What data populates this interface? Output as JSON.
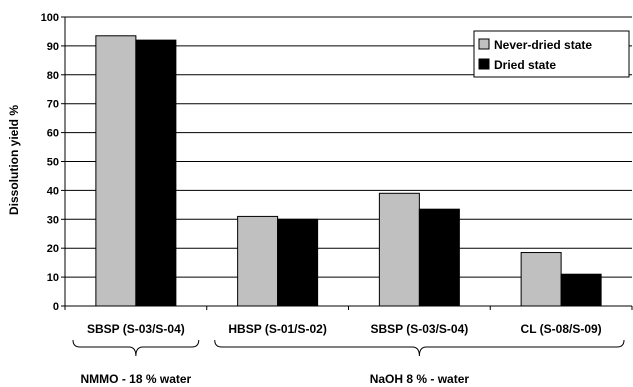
{
  "chart_data": {
    "type": "bar",
    "ylabel": "Dissolution yield %",
    "ylim": [
      0,
      100
    ],
    "yticks": [
      0,
      10,
      20,
      30,
      40,
      50,
      60,
      70,
      80,
      90,
      100
    ],
    "categories": [
      "SBSP (S-03/S-04)",
      "HBSP (S-01/S-02)",
      "SBSP (S-03/S-04)",
      "CL (S-08/S-09)"
    ],
    "series": [
      {
        "name": "Never-dried state",
        "color": "#c0c0c0",
        "values": [
          93.5,
          31,
          39,
          18.5
        ]
      },
      {
        "name": "Dried state",
        "color": "#000000",
        "values": [
          92,
          30,
          33.5,
          11
        ]
      }
    ],
    "groups": [
      {
        "label": "NMMO - 18 % water",
        "categories": [
          0
        ]
      },
      {
        "label": "NaOH 8 % - water",
        "categories": [
          1,
          2,
          3
        ]
      }
    ],
    "legend_position": "top-right",
    "grid": true
  }
}
